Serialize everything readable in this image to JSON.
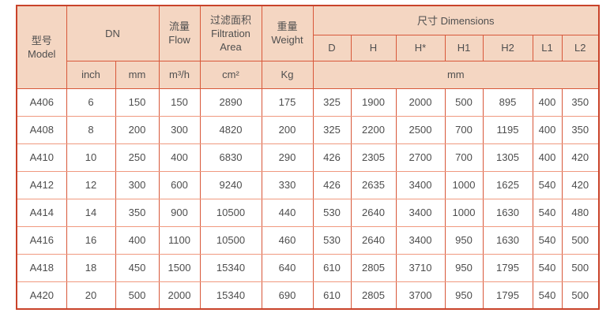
{
  "table": {
    "header": {
      "model": "型号\nModel",
      "dn": "DN",
      "flow": "流量\nFlow",
      "filtration_area": "过滤面积\nFiltration\nArea",
      "weight": "重量\nWeight",
      "dimensions": "尺寸 Dimensions",
      "dim_cols": [
        "D",
        "H",
        "H*",
        "H1",
        "H2",
        "L1",
        "L2"
      ],
      "units": {
        "inch": "inch",
        "mm": "mm",
        "flow": "m³/h",
        "area": "cm²",
        "weight": "Kg",
        "dimensions": "mm"
      }
    },
    "rows": [
      {
        "model": "A406",
        "values": [
          "6",
          "150",
          "150",
          "2890",
          "175",
          "325",
          "1900",
          "2000",
          "500",
          "895",
          "400",
          "350"
        ]
      },
      {
        "model": "A408",
        "values": [
          "8",
          "200",
          "300",
          "4820",
          "200",
          "325",
          "2200",
          "2500",
          "700",
          "1195",
          "400",
          "350"
        ]
      },
      {
        "model": "A410",
        "values": [
          "10",
          "250",
          "400",
          "6830",
          "290",
          "426",
          "2305",
          "2700",
          "700",
          "1305",
          "400",
          "420"
        ]
      },
      {
        "model": "A412",
        "values": [
          "12",
          "300",
          "600",
          "9240",
          "330",
          "426",
          "2635",
          "3400",
          "1000",
          "1625",
          "540",
          "420"
        ]
      },
      {
        "model": "A414",
        "values": [
          "14",
          "350",
          "900",
          "10500",
          "440",
          "530",
          "2640",
          "3400",
          "1000",
          "1630",
          "540",
          "480"
        ]
      },
      {
        "model": "A416",
        "values": [
          "16",
          "400",
          "1100",
          "10500",
          "460",
          "530",
          "2640",
          "3400",
          "950",
          "1630",
          "540",
          "500"
        ]
      },
      {
        "model": "A418",
        "values": [
          "18",
          "450",
          "1500",
          "15340",
          "640",
          "610",
          "2805",
          "3710",
          "950",
          "1795",
          "540",
          "500"
        ]
      },
      {
        "model": "A420",
        "values": [
          "20",
          "500",
          "2000",
          "15340",
          "690",
          "610",
          "2805",
          "3700",
          "950",
          "1795",
          "540",
          "500"
        ]
      }
    ]
  },
  "colors": {
    "header_bg": "#f4d6c2",
    "border_main": "#d8583a",
    "border_light": "#f0997f",
    "border_outer": "#c9432a",
    "text": "#4d4d4d"
  }
}
